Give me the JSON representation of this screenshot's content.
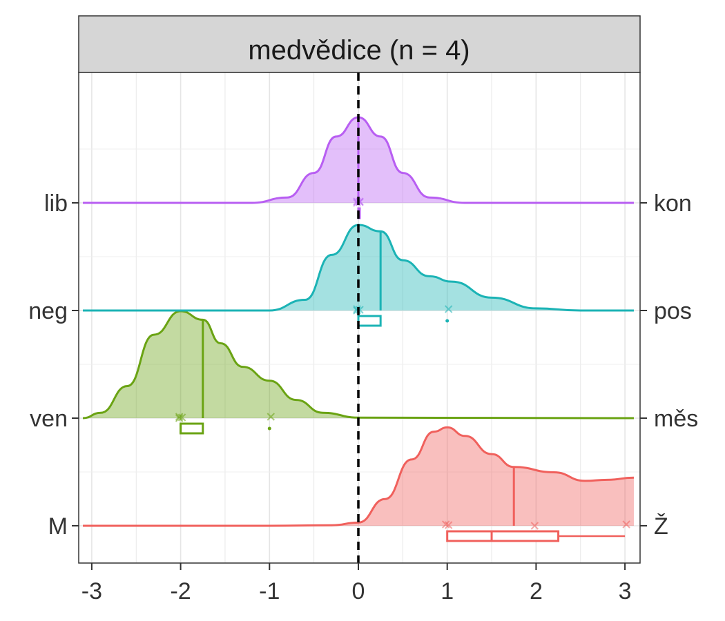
{
  "chart_data": {
    "type": "ridgeline",
    "title": "medvědice (n = 4)",
    "x_ticks": [
      -3,
      -2,
      -1,
      0,
      1,
      2,
      3
    ],
    "xlim": [
      -3.1,
      3.1
    ],
    "reference_line_x": 0,
    "grid": true,
    "series": [
      {
        "left_label": "M",
        "right_label": "Ž",
        "color": "#F0605C",
        "curve": [
          [
            -3.1,
            0
          ],
          [
            -1.0,
            0
          ],
          [
            -0.3,
            0.005
          ],
          [
            0,
            0.03
          ],
          [
            0.3,
            0.25
          ],
          [
            0.6,
            0.62
          ],
          [
            0.85,
            0.88
          ],
          [
            1.0,
            0.92
          ],
          [
            1.2,
            0.84
          ],
          [
            1.5,
            0.67
          ],
          [
            1.75,
            0.55
          ],
          [
            2.2,
            0.5
          ],
          [
            2.55,
            0.42
          ],
          [
            2.8,
            0.43
          ],
          [
            3.1,
            0.45
          ]
        ],
        "median": 1.75,
        "points": [
          1,
          1,
          2,
          3
        ],
        "boxplot": {
          "whisker_low": 1,
          "q1": 1,
          "median": 1.5,
          "q3": 2.25,
          "whisker_high": 3
        }
      },
      {
        "left_label": "ven",
        "right_label": "měs",
        "color": "#6AA313",
        "curve": [
          [
            -3.1,
            0
          ],
          [
            -2.9,
            0.05
          ],
          [
            -2.6,
            0.3
          ],
          [
            -2.3,
            0.78
          ],
          [
            -2.0,
            1.0
          ],
          [
            -1.75,
            0.92
          ],
          [
            -1.55,
            0.7
          ],
          [
            -1.3,
            0.48
          ],
          [
            -1.0,
            0.35
          ],
          [
            -0.7,
            0.17
          ],
          [
            -0.4,
            0.05
          ],
          [
            0,
            0.005
          ],
          [
            3.1,
            0
          ]
        ],
        "median": -1.75,
        "points": [
          -2,
          -2,
          -2,
          -1
        ],
        "boxplot": {
          "whisker_low": -2,
          "q1": -2,
          "median": -2,
          "q3": -1.75,
          "whisker_high": -1.75
        },
        "outliers": [
          -1
        ]
      },
      {
        "left_label": "neg",
        "right_label": "pos",
        "color": "#1BB3B5",
        "curve": [
          [
            -3.1,
            0
          ],
          [
            -1.0,
            0
          ],
          [
            -0.6,
            0.1
          ],
          [
            -0.3,
            0.52
          ],
          [
            0,
            0.8
          ],
          [
            0.25,
            0.74
          ],
          [
            0.5,
            0.47
          ],
          [
            0.8,
            0.32
          ],
          [
            1.05,
            0.27
          ],
          [
            1.5,
            0.12
          ],
          [
            2.0,
            0.02
          ],
          [
            2.5,
            0
          ],
          [
            3.1,
            0
          ]
        ],
        "median": 0.25,
        "points": [
          0,
          0,
          0,
          1
        ],
        "boxplot": {
          "whisker_low": 0,
          "q1": 0,
          "median": 0,
          "q3": 0.25,
          "whisker_high": 0.25
        },
        "outliers": [
          1
        ]
      },
      {
        "left_label": "lib",
        "right_label": "kon",
        "color": "#B85EF2",
        "curve": [
          [
            -3.1,
            0
          ],
          [
            -1.2,
            0
          ],
          [
            -0.8,
            0.05
          ],
          [
            -0.5,
            0.28
          ],
          [
            -0.25,
            0.62
          ],
          [
            0,
            0.8
          ],
          [
            0.25,
            0.62
          ],
          [
            0.5,
            0.28
          ],
          [
            0.8,
            0.05
          ],
          [
            1.2,
            0
          ],
          [
            3.1,
            0
          ]
        ],
        "median": 0,
        "points": [
          0,
          0,
          0,
          0
        ],
        "boxplot": {
          "whisker_low": 0,
          "q1": 0,
          "median": 0,
          "q3": 0,
          "whisker_high": 0
        }
      }
    ]
  }
}
